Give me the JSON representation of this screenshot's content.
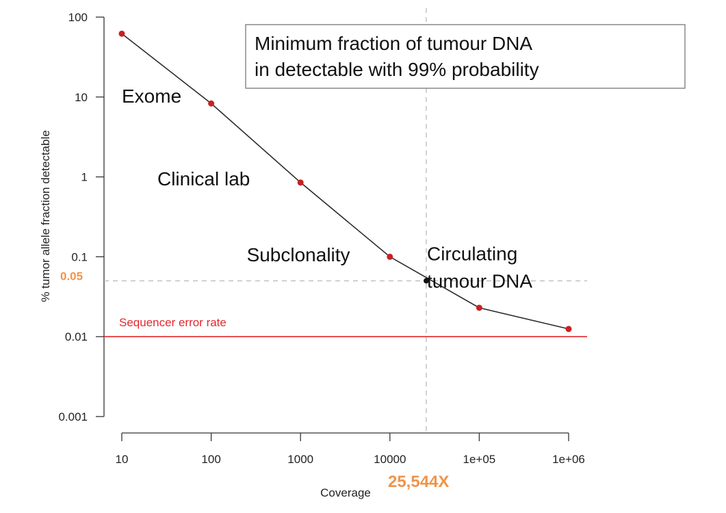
{
  "chart_data": {
    "type": "line",
    "title": "",
    "xlabel": "Coverage",
    "ylabel": "% tumor allele fraction detectable",
    "x_scale": "log",
    "y_scale": "log",
    "xlim": [
      10,
      1000000
    ],
    "ylim": [
      0.001,
      100
    ],
    "x_ticks": [
      {
        "value": 10,
        "label": "10"
      },
      {
        "value": 100,
        "label": "100"
      },
      {
        "value": 1000,
        "label": "1000"
      },
      {
        "value": 10000,
        "label": "10000"
      },
      {
        "value": 100000,
        "label": "1e+05"
      },
      {
        "value": 1000000,
        "label": "1e+06"
      }
    ],
    "y_ticks": [
      {
        "value": 100,
        "label": "100"
      },
      {
        "value": 10,
        "label": "10"
      },
      {
        "value": 1,
        "label": "1"
      },
      {
        "value": 0.1,
        "label": "0.1"
      },
      {
        "value": 0.01,
        "label": "0.01"
      },
      {
        "value": 0.001,
        "label": "0.001"
      }
    ],
    "grid": false,
    "series": [
      {
        "color": "#cc1f1f",
        "line_color": "#2b2b2b",
        "points": [
          {
            "x": 10,
            "y": 62
          },
          {
            "x": 100,
            "y": 8.3
          },
          {
            "x": 1000,
            "y": 0.85
          },
          {
            "x": 10000,
            "y": 0.1
          },
          {
            "x": 100000,
            "y": 0.023
          },
          {
            "x": 1000000,
            "y": 0.0125
          }
        ]
      }
    ],
    "highlight_point": {
      "x": 25544,
      "y": 0.05,
      "color": "#111111"
    },
    "reference_lines": [
      {
        "orientation": "horizontal",
        "value": 0.01,
        "label": "Sequencer error rate",
        "color": "#e0292e",
        "style": "solid"
      },
      {
        "orientation": "horizontal",
        "value": 0.05,
        "label": "0.05",
        "color": "#bdbdbd",
        "label_color": "#f09448",
        "style": "dashed"
      },
      {
        "orientation": "vertical",
        "value": 25544,
        "label": "25,544X",
        "color": "#bdbdbd",
        "label_color": "#f09448",
        "style": "dashed"
      }
    ],
    "legend_box": {
      "lines": [
        "Minimum fraction of tumour DNA",
        "in detectable with 99% probability"
      ],
      "placement": "top-right"
    },
    "annotations": [
      {
        "text": "Exome",
        "x": 10,
        "y": 8.5
      },
      {
        "text": "Clinical lab",
        "x": 25,
        "y": 0.78
      },
      {
        "text": "Subclonality",
        "x": 250,
        "y": 0.088
      },
      {
        "text": "Circulating\ntumour DNA",
        "x": 26000,
        "y": 0.09
      }
    ]
  }
}
